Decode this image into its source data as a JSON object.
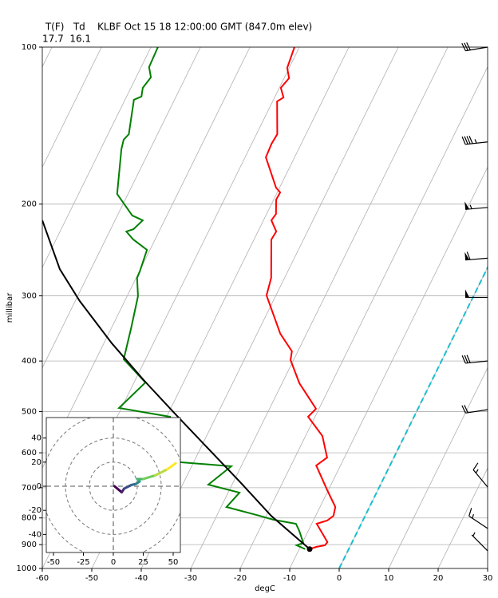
{
  "chart_data": [
    {
      "type": "skewt",
      "title": " T(F)   Td    KLBF Oct 15 18 12:00:00 GMT (847.0m elev)",
      "subtitle": "17.7  16.1",
      "xlabel": "degC",
      "ylabel": "millibar",
      "xlim": [
        -60,
        30
      ],
      "ylim": [
        1000,
        100
      ],
      "log_y": true,
      "grid": true,
      "xticks": [
        -60,
        -50,
        -40,
        -30,
        -20,
        -10,
        0,
        10,
        20,
        30
      ],
      "yticks": [
        100,
        200,
        300,
        400,
        500,
        600,
        700,
        800,
        900,
        1000
      ],
      "zero_isotherm": {
        "value": 0,
        "color": "#17becf"
      },
      "series": [
        {
          "color": "#ff0000",
          "y": [
            100,
            109.6,
            114.7,
            119.7,
            124.9,
            127.1,
            146.9,
            153.2,
            162.7,
            186.1,
            190.0,
            196.1,
            209.0,
            214.9,
            225.8,
            233.9,
            277.2,
            299.4,
            354.6,
            383.2,
            398.4,
            441.3,
            494.0,
            511.7,
            557.0,
            612.6,
            634.7,
            707.9,
            762.3,
            792.4,
            809.3,
            820.8,
            890.1,
            902.7,
            909.2,
            918
          ],
          "values": [
            -61.0,
            -60.4,
            -59.0,
            -59.7,
            -58.2,
            -59.1,
            -55.8,
            -56.0,
            -55.8,
            -50.7,
            -49.4,
            -49.5,
            -48.1,
            -48.4,
            -46.3,
            -46.5,
            -42.7,
            -41.9,
            -35.3,
            -31.2,
            -30.6,
            -26.5,
            -20.6,
            -21.4,
            -16.6,
            -13.5,
            -14.9,
            -10.2,
            -6.9,
            -6.4,
            -7.2,
            -9.0,
            -5.0,
            -5.2,
            -6.8,
            -7.9
          ]
        },
        {
          "color": "#008000",
          "y": [
            100,
            109.2,
            114.3,
            119.7,
            124.4,
            126.2,
            146.9,
            150.5,
            157.0,
            191.3,
            210.4,
            214.9,
            223.5,
            225.8,
            233.9,
            244.9,
            269.4,
            277.2,
            300.4,
            346.0,
            397.0,
            439.8,
            492.3,
            511.7,
            623.6,
            636.8,
            690.6,
            715.5,
            762.3,
            789.7,
            806.5,
            820.8,
            847.3,
            893.2,
            902.7,
            918
          ],
          "values": [
            -88.6,
            -88.4,
            -87.0,
            -87.6,
            -87.0,
            -88.2,
            -85.8,
            -86.3,
            -85.8,
            -82.2,
            -77.0,
            -74.4,
            -75.4,
            -76.6,
            -74.4,
            -70.6,
            -69.9,
            -69.8,
            -67.8,
            -66.0,
            -64.4,
            -57.7,
            -60.5,
            -49.3,
            -44.5,
            -32.0,
            -34.8,
            -27.7,
            -28.9,
            -22.0,
            -18.1,
            -13.2,
            -11.8,
            -9.8,
            -10.9,
            -8.8
          ]
        },
        {
          "color": "#000000",
          "y": [
            918,
            792.4,
            681.0,
            587.4,
            506.5,
            435.1,
            369.9,
            306.9,
            266.6,
            214.9
          ],
          "values": [
            -7.9,
            -19.0,
            -28.8,
            -38.6,
            -48.4,
            -58.3,
            -68.4,
            -79.1,
            -86.3,
            -94.7
          ]
        }
      ],
      "barbs": {
        "y": [
          100,
          152,
          203,
          254,
          302,
          400,
          496,
          698,
          838,
          925
        ],
        "u": [
          30,
          45,
          55,
          60,
          50,
          30,
          20,
          10,
          12,
          5
        ],
        "v": [
          5,
          5,
          5,
          5,
          0,
          3,
          3,
          -12,
          -8,
          -5
        ]
      }
    },
    {
      "type": "hodograph",
      "xlim": [
        -56,
        56
      ],
      "ylim": [
        -55,
        57
      ],
      "xticks": [
        -50,
        -25,
        0,
        25,
        50
      ],
      "yticks": [
        -40,
        -20,
        0,
        20,
        40
      ],
      "rings": [
        20,
        40,
        60
      ],
      "x": [
        1,
        7,
        9,
        15,
        19,
        22,
        20,
        25,
        35,
        45,
        52
      ],
      "values": [
        0,
        -5,
        -2,
        1,
        2,
        4,
        6,
        6,
        9,
        14,
        19
      ]
    }
  ]
}
